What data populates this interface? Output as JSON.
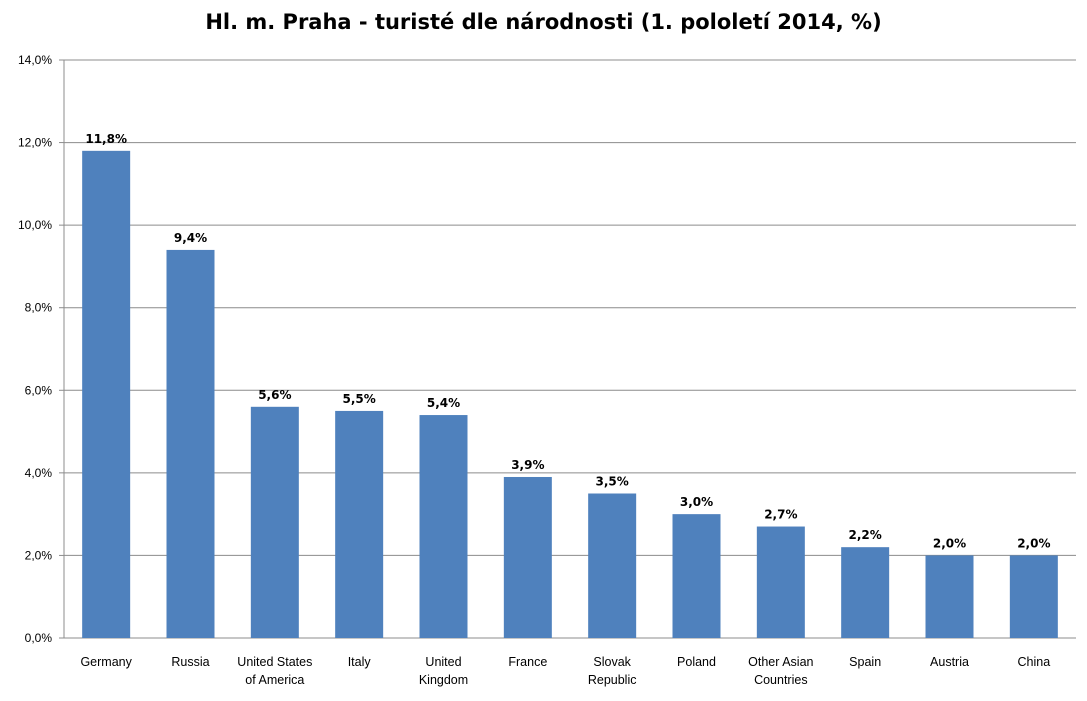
{
  "chart_data": {
    "type": "bar",
    "title": "Hl. m. Praha - turisté dle národnosti (1. pololetí 2014, %)",
    "categories": [
      [
        "Germany"
      ],
      [
        "Russia"
      ],
      [
        "United States",
        "of America"
      ],
      [
        "Italy"
      ],
      [
        "United",
        "Kingdom"
      ],
      [
        "France"
      ],
      [
        "Slovak",
        "Republic"
      ],
      [
        "Poland"
      ],
      [
        "Other Asian",
        "Countries"
      ],
      [
        "Spain"
      ],
      [
        "Austria"
      ],
      [
        "China"
      ]
    ],
    "values": [
      11.8,
      9.4,
      5.6,
      5.5,
      5.4,
      3.9,
      3.5,
      3.0,
      2.7,
      2.2,
      2.0,
      2.0
    ],
    "data_labels": [
      "11,8%",
      "9,4%",
      "5,6%",
      "5,5%",
      "5,4%",
      "3,9%",
      "3,5%",
      "3,0%",
      "2,7%",
      "2,2%",
      "2,0%",
      "2,0%"
    ],
    "y_ticks": [
      0,
      2,
      4,
      6,
      8,
      10,
      12,
      14
    ],
    "y_tick_labels": [
      "0,0%",
      "2,0%",
      "4,0%",
      "6,0%",
      "8,0%",
      "10,0%",
      "12,0%",
      "14,0%"
    ],
    "ylim": [
      0,
      14
    ],
    "xlabel": "",
    "ylabel": "",
    "grid": true,
    "legend": "none",
    "bar_color": "#4f81bd",
    "grid_color": "#8c8c8c"
  }
}
